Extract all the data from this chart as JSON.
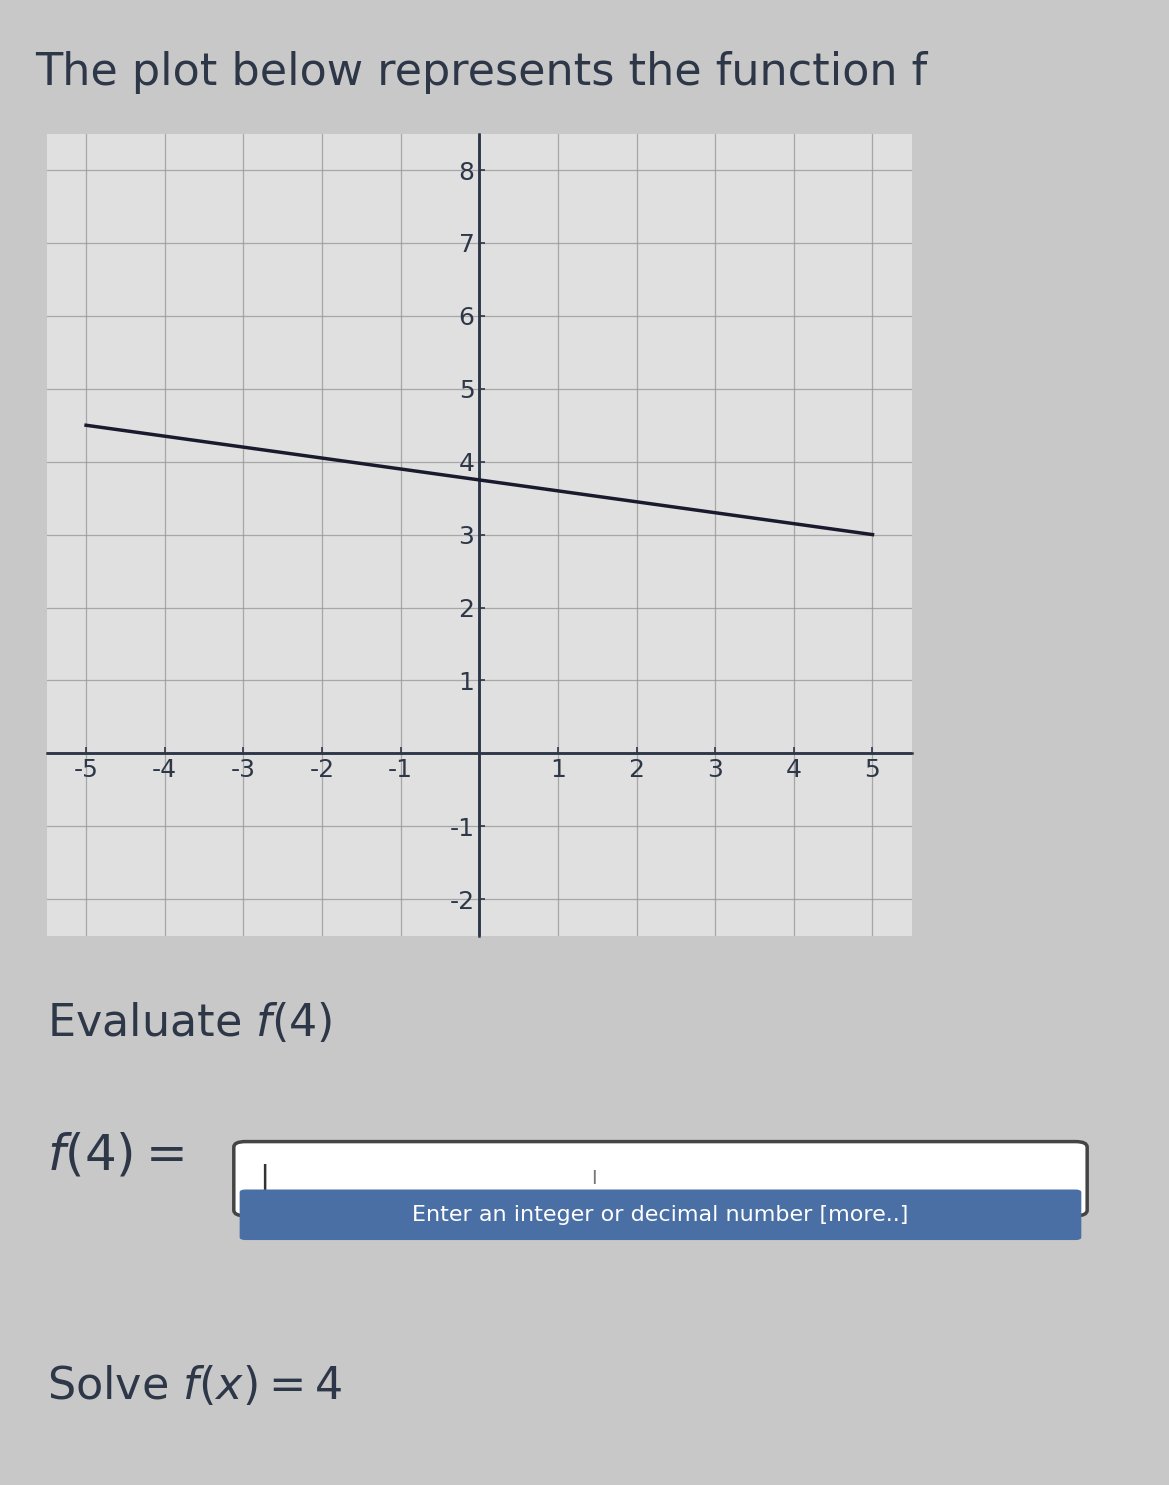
{
  "title": "The plot below represents the function f",
  "title_fontsize": 32,
  "title_color": "#2d3748",
  "bg_color": "#c8c8c8",
  "plot_area_bg": "#f0f0f0",
  "plot_bg_color": "#e0e0e0",
  "grid_color": "#999999",
  "axis_color": "#2d3748",
  "line_color": "#1a1a2e",
  "line_x": [
    -5,
    5
  ],
  "line_y": [
    4.5,
    3.0
  ],
  "xlim": [
    -5.5,
    5.5
  ],
  "ylim": [
    -2.5,
    8.5
  ],
  "xticks": [
    -5,
    -4,
    -3,
    -2,
    -1,
    1,
    2,
    3,
    4,
    5
  ],
  "yticks": [
    -2,
    -1,
    1,
    2,
    3,
    4,
    5,
    6,
    7,
    8
  ],
  "tick_fontsize": 18,
  "evaluate_text": "Evaluate $f(4)$",
  "evaluate_fontsize": 32,
  "f4_label": "$f(4) =$",
  "f4_fontsize": 36,
  "hint_text": "Enter an integer or decimal number [more..]",
  "hint_fontsize": 16,
  "solve_text": "Solve $f(x) = 4$",
  "solve_fontsize": 32,
  "input_box_color": "#ffffff",
  "input_box_border": "#333333",
  "hint_bg_color": "#4a6fa5",
  "hint_text_color": "#ffffff",
  "text_bg_color": "#d8d8d8"
}
